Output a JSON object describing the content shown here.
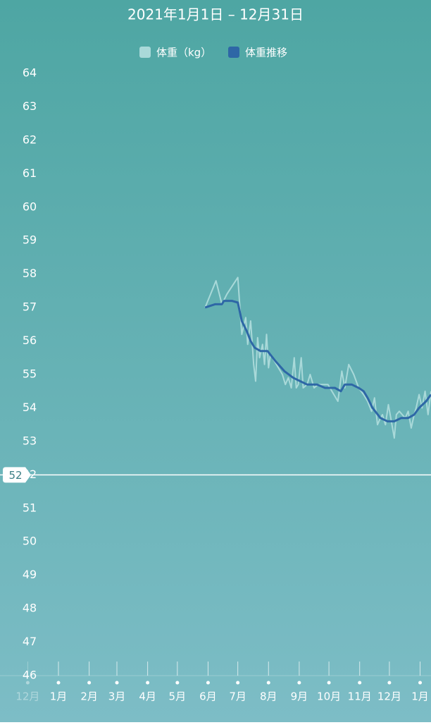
{
  "chart_data": {
    "type": "line",
    "title": "2021年1月1日 – 12月31日",
    "xlim": [
      -59,
      376
    ],
    "xticks": [
      {
        "value": -31,
        "label": "12月"
      },
      {
        "value": 0,
        "label": "1月"
      },
      {
        "value": 31,
        "label": "2月"
      },
      {
        "value": 59,
        "label": "3月"
      },
      {
        "value": 90,
        "label": "4月"
      },
      {
        "value": 120,
        "label": "5月"
      },
      {
        "value": 151,
        "label": "6月"
      },
      {
        "value": 181,
        "label": "7月"
      },
      {
        "value": 212,
        "label": "8月"
      },
      {
        "value": 243,
        "label": "9月"
      },
      {
        "value": 273,
        "label": "10月"
      },
      {
        "value": 304,
        "label": "11月"
      },
      {
        "value": 334,
        "label": "12月"
      },
      {
        "value": 365,
        "label": "1月"
      }
    ],
    "ylim": [
      46,
      64
    ],
    "yticks": [
      46,
      47,
      48,
      49,
      50,
      51,
      52,
      53,
      54,
      55,
      56,
      57,
      58,
      59,
      60,
      61,
      62,
      63,
      64
    ],
    "target_line": 52,
    "series": [
      {
        "name": "体重（kg）",
        "color": "#a9d9d9",
        "x": [
          148,
          159,
          165,
          170,
          181,
          185,
          189,
          191,
          194,
          197,
          199,
          201,
          203,
          206,
          208,
          210,
          212,
          214,
          218,
          222,
          226,
          229,
          232,
          235,
          238,
          240,
          242,
          245,
          247,
          251,
          254,
          258,
          262,
          268,
          272,
          276,
          282,
          286,
          289,
          293,
          298,
          303,
          308,
          312,
          316,
          319,
          322,
          325,
          327,
          330,
          333,
          336,
          339,
          341,
          344,
          347,
          350,
          353,
          356,
          359,
          361,
          364,
          367,
          370,
          373,
          376
        ],
        "values": [
          57.0,
          57.8,
          57.1,
          57.4,
          57.9,
          56.2,
          56.7,
          55.9,
          56.6,
          55.3,
          54.8,
          56.1,
          55.5,
          55.9,
          55.3,
          56.2,
          55.2,
          55.6,
          55.4,
          55.2,
          55.0,
          54.7,
          54.9,
          54.6,
          55.5,
          54.6,
          54.7,
          55.5,
          54.6,
          54.7,
          55.0,
          54.6,
          54.7,
          54.7,
          54.7,
          54.5,
          54.2,
          55.1,
          54.6,
          55.3,
          55.0,
          54.6,
          54.4,
          54.2,
          53.9,
          54.3,
          53.5,
          53.7,
          53.8,
          53.5,
          54.1,
          53.6,
          53.1,
          53.8,
          53.9,
          53.8,
          53.7,
          53.9,
          53.4,
          53.8,
          54.0,
          54.4,
          54.0,
          54.5,
          53.8,
          54.5
        ]
      },
      {
        "name": "体重推移",
        "color": "#2e67a6",
        "x": [
          148,
          158,
          165,
          167,
          175,
          181,
          185,
          190,
          194,
          198,
          204,
          211,
          219,
          228,
          237,
          244,
          251,
          261,
          269,
          279,
          285,
          289,
          296,
          303,
          308,
          312,
          317,
          325,
          332,
          339,
          346,
          353,
          359,
          364,
          371,
          376
        ],
        "values": [
          57.0,
          57.1,
          57.1,
          57.2,
          57.2,
          57.15,
          56.6,
          56.3,
          56.0,
          55.8,
          55.7,
          55.7,
          55.4,
          55.1,
          54.9,
          54.8,
          54.7,
          54.7,
          54.6,
          54.6,
          54.5,
          54.7,
          54.7,
          54.6,
          54.5,
          54.3,
          54.0,
          53.7,
          53.6,
          53.6,
          53.7,
          53.7,
          53.8,
          54.0,
          54.2,
          54.4
        ]
      }
    ]
  }
}
